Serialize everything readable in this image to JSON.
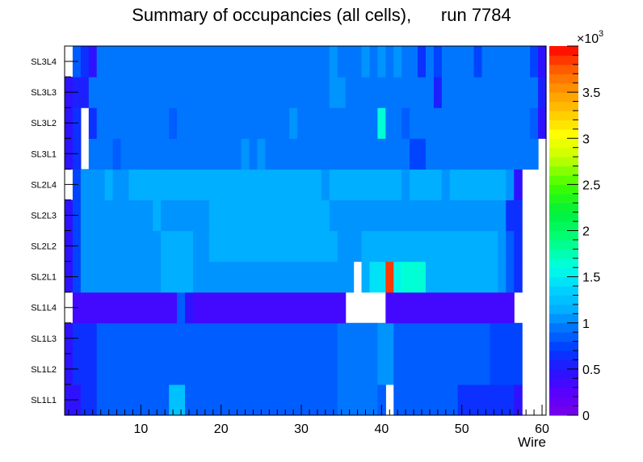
{
  "chart_data": {
    "type": "heatmap",
    "title": "Summary of occupancies (all cells),      run 7784",
    "xlabel": "Wire",
    "ylabel": "",
    "xlim": [
      0.5,
      60.5
    ],
    "x_ticks": [
      10,
      20,
      30,
      40,
      50,
      60
    ],
    "rows": [
      "SL1L1",
      "SL1L2",
      "SL1L3",
      "SL1L4",
      "SL2L1",
      "SL2L2",
      "SL2L3",
      "SL2L4",
      "SL3L1",
      "SL3L2",
      "SL3L3",
      "SL3L4"
    ],
    "zlim": [
      0,
      4000
    ],
    "colorbar_ticks": [
      0,
      0.5,
      1,
      1.5,
      2,
      2.5,
      3,
      3.5
    ],
    "colorbar_tick_labels": [
      "0",
      "0.5",
      "1",
      "1.5",
      "2",
      "2.5",
      "3",
      "3.5"
    ],
    "colorbar_multiplier": "×10",
    "colorbar_exponent": "3",
    "cell_values": [
      [
        450,
        450,
        600,
        600,
        850,
        850,
        850,
        850,
        850,
        850,
        850,
        850,
        850,
        1250,
        1250,
        850,
        850,
        850,
        850,
        850,
        850,
        850,
        850,
        850,
        850,
        850,
        850,
        850,
        850,
        850,
        850,
        850,
        850,
        850,
        900,
        950,
        950,
        950,
        950,
        850,
        null,
        850,
        850,
        850,
        850,
        850,
        850,
        850,
        850,
        600,
        600,
        600,
        600,
        600,
        600,
        600,
        450,
        null,
        null,
        null
      ],
      [
        450,
        600,
        600,
        600,
        850,
        850,
        850,
        850,
        850,
        850,
        850,
        850,
        850,
        850,
        850,
        850,
        850,
        850,
        850,
        850,
        850,
        850,
        850,
        850,
        850,
        850,
        850,
        850,
        850,
        850,
        850,
        850,
        850,
        850,
        900,
        950,
        950,
        950,
        950,
        1000,
        1000,
        850,
        850,
        850,
        850,
        850,
        850,
        850,
        850,
        850,
        850,
        850,
        850,
        700,
        700,
        700,
        700,
        null,
        null,
        null
      ],
      [
        450,
        600,
        600,
        600,
        850,
        850,
        850,
        850,
        850,
        850,
        850,
        850,
        850,
        850,
        850,
        850,
        850,
        850,
        850,
        850,
        850,
        850,
        850,
        850,
        850,
        850,
        850,
        850,
        850,
        850,
        850,
        850,
        850,
        850,
        900,
        950,
        950,
        950,
        950,
        1000,
        1000,
        850,
        850,
        850,
        850,
        850,
        850,
        850,
        850,
        850,
        850,
        850,
        850,
        700,
        700,
        700,
        700,
        null,
        null,
        null
      ],
      [
        null,
        300,
        300,
        300,
        300,
        300,
        300,
        300,
        300,
        300,
        300,
        300,
        300,
        300,
        850,
        400,
        300,
        300,
        300,
        300,
        300,
        300,
        300,
        300,
        300,
        300,
        300,
        300,
        300,
        300,
        300,
        300,
        300,
        300,
        300,
        null,
        null,
        null,
        null,
        null,
        300,
        300,
        300,
        300,
        300,
        300,
        300,
        300,
        300,
        300,
        300,
        300,
        300,
        300,
        300,
        300,
        null,
        null,
        null,
        null
      ],
      [
        400,
        700,
        1000,
        1000,
        1000,
        1000,
        1000,
        1000,
        1000,
        1000,
        1000,
        1000,
        1150,
        1150,
        1150,
        1150,
        1000,
        1000,
        1000,
        1000,
        1000,
        1000,
        1000,
        1000,
        1000,
        1000,
        1000,
        1000,
        1000,
        1000,
        1000,
        1000,
        1000,
        1000,
        1000,
        1000,
        null,
        1150,
        1400,
        1400,
        3800,
        1500,
        1600,
        1600,
        1600,
        1150,
        1150,
        1150,
        1150,
        1150,
        1150,
        1150,
        1150,
        1150,
        1000,
        800,
        600,
        null,
        null,
        null
      ],
      [
        400,
        700,
        1000,
        1000,
        1000,
        1000,
        1000,
        1000,
        1000,
        1000,
        1000,
        1000,
        1150,
        1150,
        1150,
        1150,
        1000,
        1000,
        1150,
        1150,
        1150,
        1150,
        1150,
        1150,
        1150,
        1150,
        1150,
        1150,
        1150,
        1150,
        1150,
        1150,
        1150,
        1150,
        1000,
        1000,
        1000,
        1150,
        1150,
        1150,
        1150,
        1150,
        1150,
        1150,
        1150,
        1150,
        1150,
        1150,
        1150,
        1150,
        1150,
        1150,
        1150,
        1150,
        1000,
        800,
        600,
        null,
        null,
        null
      ],
      [
        400,
        700,
        1000,
        1000,
        1000,
        1000,
        1000,
        1000,
        1000,
        1000,
        1000,
        1150,
        1000,
        1000,
        1000,
        1000,
        1000,
        1000,
        1150,
        1150,
        1150,
        1150,
        1150,
        1150,
        1150,
        1150,
        1150,
        1150,
        1150,
        1150,
        1150,
        1150,
        1150,
        1000,
        1000,
        1000,
        1000,
        1000,
        1000,
        1000,
        1000,
        1000,
        1000,
        1000,
        1000,
        1000,
        1000,
        1000,
        1000,
        1000,
        1000,
        1000,
        1000,
        1000,
        1000,
        600,
        600,
        null,
        null,
        null
      ],
      [
        null,
        700,
        1000,
        1000,
        1000,
        1150,
        1000,
        1000,
        1150,
        1150,
        1150,
        1150,
        1150,
        1150,
        1150,
        1150,
        1150,
        1150,
        1150,
        1150,
        1150,
        1150,
        1150,
        1150,
        1150,
        1150,
        1150,
        1150,
        1150,
        1150,
        1150,
        1150,
        1000,
        1150,
        1150,
        1150,
        1150,
        1150,
        1150,
        1150,
        1150,
        1150,
        1000,
        1150,
        1150,
        1150,
        1150,
        1000,
        1150,
        1150,
        1150,
        1150,
        1150,
        1150,
        1150,
        1000,
        400,
        null,
        null,
        null
      ],
      [
        400,
        600,
        null,
        900,
        900,
        900,
        800,
        900,
        900,
        900,
        900,
        900,
        900,
        900,
        900,
        900,
        900,
        900,
        900,
        900,
        900,
        900,
        1000,
        900,
        1000,
        900,
        900,
        900,
        900,
        900,
        900,
        900,
        900,
        900,
        900,
        900,
        900,
        900,
        900,
        900,
        900,
        900,
        900,
        750,
        750,
        900,
        900,
        900,
        900,
        900,
        900,
        900,
        900,
        900,
        900,
        900,
        900,
        900,
        900,
        null
      ],
      [
        400,
        600,
        null,
        600,
        900,
        900,
        900,
        900,
        900,
        900,
        900,
        900,
        900,
        800,
        900,
        900,
        900,
        900,
        900,
        900,
        900,
        900,
        900,
        900,
        900,
        900,
        900,
        900,
        1000,
        900,
        900,
        900,
        900,
        900,
        900,
        900,
        900,
        900,
        900,
        1600,
        900,
        900,
        800,
        900,
        900,
        900,
        900,
        900,
        900,
        900,
        900,
        900,
        900,
        900,
        900,
        900,
        900,
        900,
        800,
        400
      ],
      [
        400,
        500,
        500,
        900,
        900,
        900,
        900,
        900,
        900,
        900,
        900,
        900,
        900,
        900,
        900,
        900,
        900,
        900,
        900,
        900,
        900,
        900,
        900,
        900,
        900,
        900,
        900,
        900,
        900,
        900,
        900,
        900,
        900,
        1000,
        1000,
        900,
        900,
        900,
        900,
        900,
        900,
        900,
        900,
        900,
        900,
        900,
        500,
        900,
        900,
        900,
        900,
        900,
        900,
        900,
        900,
        900,
        900,
        900,
        900,
        500
      ],
      [
        null,
        800,
        600,
        400,
        900,
        900,
        900,
        900,
        900,
        900,
        900,
        900,
        900,
        900,
        900,
        900,
        900,
        900,
        900,
        900,
        900,
        900,
        900,
        900,
        900,
        900,
        900,
        900,
        900,
        900,
        900,
        900,
        900,
        1000,
        900,
        900,
        900,
        1000,
        900,
        1000,
        900,
        1000,
        900,
        900,
        600,
        900,
        700,
        900,
        900,
        900,
        900,
        700,
        900,
        900,
        900,
        900,
        900,
        900,
        700,
        400
      ]
    ]
  }
}
